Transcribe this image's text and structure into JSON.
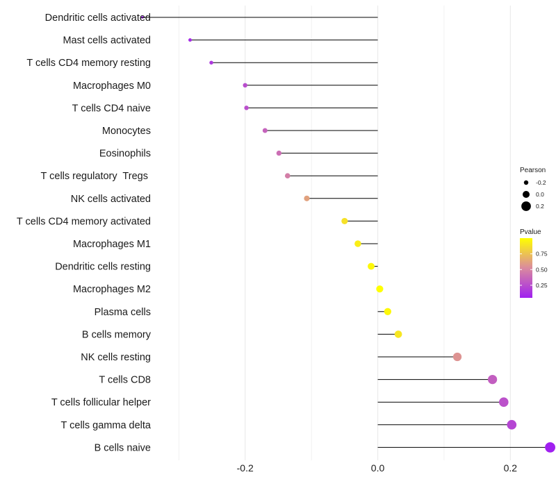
{
  "chart_data": {
    "type": "lollipop",
    "title": "",
    "xlabel": "",
    "ylabel": "",
    "xlim": [
      -0.3307,
      0.2667
    ],
    "xticks": [
      -0.2,
      0.0,
      0.2
    ],
    "xtick_labels": [
      "-0.2",
      "0.0",
      "0.2"
    ],
    "grid": true,
    "categories": [
      "Dendritic cells activated",
      "Mast cells activated",
      "T cells CD4 memory resting",
      "Macrophages M0",
      "T cells CD4 naive",
      "Monocytes",
      "Eosinophils",
      "T cells regulatory  Tregs ",
      "NK cells activated",
      "T cells CD4 memory activated",
      "Macrophages M1",
      "Dendritic cells resting",
      "Macrophages M2",
      "Plasma cells",
      "B cells memory",
      "NK cells resting",
      "T cells CD8",
      "T cells follicular helper",
      "T cells gamma delta",
      "B cells naive"
    ],
    "pearson": [
      -0.355,
      -0.283,
      -0.251,
      -0.2,
      -0.198,
      -0.17,
      -0.149,
      -0.136,
      -0.107,
      -0.05,
      -0.03,
      -0.01,
      0.003,
      0.015,
      0.031,
      0.12,
      0.173,
      0.19,
      0.202,
      0.26
    ],
    "pvalue": [
      0.06,
      0.1,
      0.16,
      0.25,
      0.26,
      0.35,
      0.4,
      0.47,
      0.62,
      0.88,
      0.93,
      0.97,
      1.0,
      0.97,
      0.9,
      0.56,
      0.33,
      0.27,
      0.22,
      0.05
    ],
    "legend": {
      "size_title": "Pearson",
      "size_labels": [
        "-0.2",
        "0.0",
        "0.2"
      ],
      "size_values": [
        -0.2,
        0.0,
        0.2
      ],
      "color_title": "Pvalue",
      "color_labels": [
        "0.75",
        "0.50",
        "0.25"
      ],
      "color_values": [
        0.75,
        0.5,
        0.25
      ],
      "color_range": [
        0.05,
        1.0
      ],
      "color_low": "#a020f0",
      "color_mid": "#da8a9e",
      "color_high": "#ffff00",
      "position": "right"
    },
    "stem_color": "#000000",
    "grid_color": "#ebebeb"
  }
}
